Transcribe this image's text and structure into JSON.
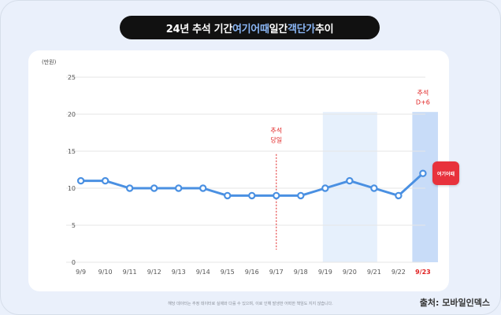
{
  "title": {
    "part1": "24년 추석 기간 ",
    "brand": "여기어때",
    "part2": " 일간 ",
    "highlight": "객단가",
    "part3": " 추이"
  },
  "disclaimer": "해당 데이터는 추정 데이터로 실제와 다를 수 있으며, 이로 인해 발생한 어떠한 책임도 지지 않습니다.",
  "source": "출처: 모바일인덱스",
  "logo_text": "여기어때",
  "colors": {
    "line": "#4a90e2",
    "highlight_light": "#e6f0fc",
    "highlight_strong": "#c8dcf8",
    "annotation": "#e02020"
  },
  "chart_data": {
    "type": "line",
    "ylabel": "(만원)",
    "ylim": [
      0,
      25
    ],
    "yticks": [
      0,
      5,
      10,
      15,
      20,
      25
    ],
    "categories": [
      "9/9",
      "9/10",
      "9/11",
      "9/12",
      "9/13",
      "9/14",
      "9/15",
      "9/16",
      "9/17",
      "9/18",
      "9/19",
      "9/20",
      "9/21",
      "9/22",
      "9/23"
    ],
    "series": [
      {
        "name": "객단가",
        "values": [
          11,
          11,
          10,
          10,
          10,
          10,
          9,
          9,
          9,
          9,
          10,
          11,
          10,
          9,
          12
        ]
      }
    ],
    "highlight_ranges": [
      {
        "from": "9/19",
        "to": "9/21",
        "style": "light"
      },
      {
        "from": "9/23",
        "to": "9/23",
        "style": "strong"
      }
    ],
    "annotations": [
      {
        "category": "9/17",
        "lines": [
          "추석",
          "당일"
        ],
        "dashed_line": true
      },
      {
        "category": "9/23",
        "lines": [
          "추석",
          "D+6"
        ],
        "dashed_line": false
      }
    ],
    "emphasized_category": "9/23"
  }
}
